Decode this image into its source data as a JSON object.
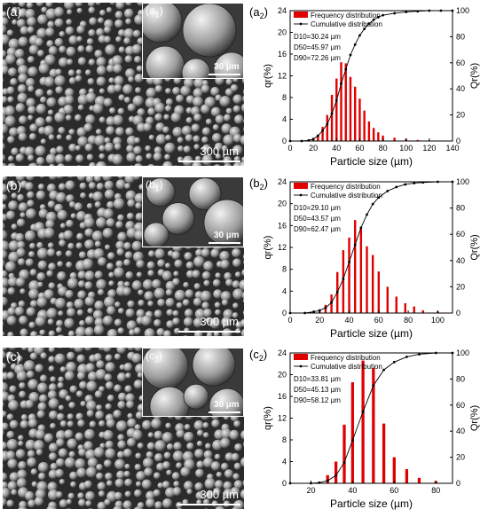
{
  "panels": [
    {
      "sem_label": "(a)",
      "inset_label": "(a",
      "inset_sub": "1",
      "inset_close": ")",
      "inset_scale": "30 µm",
      "sem_scale": "300 µm"
    },
    {
      "sem_label": "(b)",
      "inset_label": "(b",
      "inset_sub": "1",
      "inset_close": ")",
      "inset_scale": "30 µm",
      "sem_scale": "300 µm"
    },
    {
      "sem_label": "(c)",
      "inset_label": "(c",
      "inset_sub": "1",
      "inset_close": ")",
      "inset_scale": "30 µm",
      "sem_scale": "300 µm"
    }
  ],
  "chart_data": [
    {
      "type": "bar",
      "panel_label": "(a",
      "panel_sub": "2",
      "legend": {
        "bars": "Frequency distribution",
        "line": "Cumulative distribution",
        "placement": "top-left"
      },
      "annotations": [
        "D10=30.24 µm",
        "D50=45.97 µm",
        "D90=72.26 µm"
      ],
      "ylabel_left": "qr(%)",
      "ylabel_right": "Qr(%)",
      "xlabel": "Particle size (µm)",
      "xlim": [
        0,
        140
      ],
      "xticks": [
        0,
        20,
        40,
        60,
        80,
        100,
        120,
        140
      ],
      "ylim_left": [
        0,
        24
      ],
      "yticks_left": [
        0,
        4,
        8,
        12,
        16,
        20,
        24
      ],
      "ylim_right": [
        0,
        100
      ],
      "yticks_right": [
        0,
        20,
        40,
        60,
        80,
        100
      ],
      "bar_color": "#e00000",
      "bars": {
        "x": [
          16,
          20,
          24,
          28,
          32,
          36,
          40,
          44,
          48,
          52,
          56,
          60,
          64,
          68,
          72,
          76,
          80,
          90,
          100,
          110,
          120
        ],
        "values": [
          0.1,
          0.4,
          1.2,
          2.6,
          4.8,
          8.5,
          11.5,
          14.5,
          14.3,
          11.8,
          10.0,
          7.8,
          5.6,
          3.6,
          2.4,
          1.6,
          1.0,
          0.6,
          0.4,
          0.2,
          0.1
        ]
      },
      "cumulative": {
        "x": [
          0,
          10,
          16,
          20,
          24,
          28,
          32,
          36,
          40,
          44,
          48,
          52,
          56,
          60,
          64,
          68,
          72,
          76,
          80,
          90,
          100,
          110,
          120,
          130,
          140
        ],
        "values": [
          0,
          0,
          0.5,
          1.5,
          4,
          8,
          13,
          21,
          31,
          44,
          55,
          66,
          74,
          81,
          86,
          90,
          93,
          95,
          96.5,
          98,
          99,
          99.5,
          100,
          100,
          100
        ]
      }
    },
    {
      "type": "bar",
      "panel_label": "(b",
      "panel_sub": "2",
      "legend": {
        "bars": "Frequency distribution",
        "line": "Cumulative distribution",
        "placement": "top-left"
      },
      "annotations": [
        "D10=29.10 µm",
        "D50=43.57 µm",
        "D90=62.47 µm"
      ],
      "ylabel_left": "qr(%)",
      "ylabel_right": "Qr(%)",
      "xlabel": "Particle size (µm)",
      "xlim": [
        0,
        110
      ],
      "xticks": [
        0,
        20,
        40,
        60,
        80,
        100
      ],
      "ylim_left": [
        0,
        24
      ],
      "yticks_left": [
        0,
        4,
        8,
        12,
        16,
        20,
        24
      ],
      "ylim_right": [
        0,
        100
      ],
      "yticks_right": [
        0,
        20,
        40,
        60,
        80,
        100
      ],
      "bar_color": "#e00000",
      "bars": {
        "x": [
          16,
          20,
          24,
          28,
          32,
          36,
          40,
          44,
          48,
          52,
          56,
          60,
          66,
          72,
          78,
          84,
          90,
          100
        ],
        "values": [
          0.2,
          0.5,
          1.5,
          3.4,
          7.5,
          11.5,
          13.8,
          17.0,
          15.4,
          12.2,
          10.6,
          7.6,
          4.8,
          3.0,
          1.8,
          1.2,
          0.5,
          0.3
        ]
      },
      "cumulative": {
        "x": [
          0,
          10,
          16,
          20,
          24,
          28,
          32,
          36,
          40,
          44,
          48,
          52,
          56,
          60,
          66,
          72,
          78,
          84,
          90,
          100,
          110
        ],
        "values": [
          0,
          0,
          1,
          2,
          4,
          8,
          16,
          26,
          39,
          52,
          65,
          75,
          83,
          88,
          93,
          96,
          98,
          99,
          99.5,
          100,
          100
        ]
      }
    },
    {
      "type": "bar",
      "panel_label": "(c",
      "panel_sub": "2",
      "legend": {
        "bars": "Frequency distribution",
        "line": "Cumulative distribution",
        "placement": "top-left"
      },
      "annotations": [
        "D10=33.81 µm",
        "D50=45.13 µm",
        "D90=58.12 µm"
      ],
      "ylabel_left": "qr(%)",
      "ylabel_right": "Qr(%)",
      "xlabel": "Particle size (µm)",
      "xlim": [
        10,
        88
      ],
      "xticks": [
        20,
        40,
        60,
        80
      ],
      "ylim_left": [
        0,
        24
      ],
      "yticks_left": [
        0,
        4,
        8,
        12,
        16,
        20,
        24
      ],
      "ylim_right": [
        0,
        100
      ],
      "yticks_right": [
        0,
        20,
        40,
        60,
        80,
        100
      ],
      "bar_color": "#e00000",
      "bars": {
        "x": [
          24,
          28,
          32,
          36,
          40,
          45,
          50,
          55,
          60,
          66,
          72,
          80
        ],
        "values": [
          0.2,
          1.5,
          4.0,
          10.8,
          18.6,
          22.6,
          21.2,
          11.0,
          4.8,
          2.6,
          1.0,
          0.4
        ]
      },
      "cumulative": {
        "x": [
          10,
          20,
          24,
          28,
          32,
          36,
          40,
          45,
          50,
          55,
          60,
          66,
          72,
          80,
          88
        ],
        "values": [
          0,
          0,
          0.5,
          2,
          6,
          16,
          33,
          55,
          75,
          87,
          93,
          97,
          99,
          100,
          100
        ]
      }
    }
  ]
}
